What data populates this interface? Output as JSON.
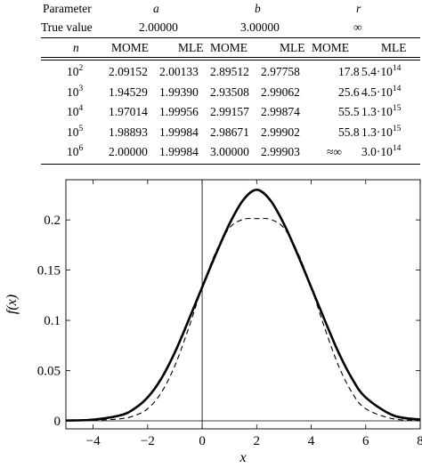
{
  "table": {
    "parameter_label": "Parameter",
    "true_value_label": "True value",
    "params": [
      "a",
      "b",
      "r"
    ],
    "true_values": [
      "2.00000",
      "3.00000",
      "∞"
    ],
    "n_label": "n",
    "col_headers": [
      "MOME",
      "MLE",
      "MOME",
      "MLE",
      "MOME",
      "MLE"
    ],
    "rows": [
      {
        "n_base": "10",
        "n_exp": "2",
        "a_mome": "2.09152",
        "a_mle": "2.00133",
        "b_mome": "2.89512",
        "b_mle": "2.97758",
        "r_mome": "17.8",
        "r_mle_mant": "5.4·10",
        "r_mle_exp": "14"
      },
      {
        "n_base": "10",
        "n_exp": "3",
        "a_mome": "1.94529",
        "a_mle": "1.99390",
        "b_mome": "2.93508",
        "b_mle": "2.99062",
        "r_mome": "25.6",
        "r_mle_mant": "4.5·10",
        "r_mle_exp": "14"
      },
      {
        "n_base": "10",
        "n_exp": "4",
        "a_mome": "1.97014",
        "a_mle": "1.99956",
        "b_mome": "2.99157",
        "b_mle": "2.99874",
        "r_mome": "55.5",
        "r_mle_mant": "1.3·10",
        "r_mle_exp": "15"
      },
      {
        "n_base": "10",
        "n_exp": "5",
        "a_mome": "1.98893",
        "a_mle": "1.99984",
        "b_mome": "2.98671",
        "b_mle": "2.99902",
        "r_mome": "55.8",
        "r_mle_mant": "1.3·10",
        "r_mle_exp": "15"
      },
      {
        "n_base": "10",
        "n_exp": "6",
        "a_mome": "2.00000",
        "a_mle": "1.99984",
        "b_mome": "3.00000",
        "b_mle": "2.99903",
        "r_mome": "≈∞",
        "r_mle_mant": "3.0·10",
        "r_mle_exp": "14"
      }
    ]
  },
  "chart_data": {
    "type": "line",
    "xlabel": "x",
    "ylabel": "f(x)",
    "xlim": [
      -5,
      8
    ],
    "ylim": [
      -0.008,
      0.24
    ],
    "xticks": [
      -4,
      -2,
      0,
      2,
      4,
      6,
      8
    ],
    "xtick_labels": [
      "−4",
      "−2",
      "0",
      "2",
      "4",
      "6",
      "8"
    ],
    "yticks": [
      0,
      0.05,
      0.1,
      0.15,
      0.2
    ],
    "ytick_labels": [
      "0",
      "0.05",
      "0.1",
      "0.15",
      "0.2"
    ],
    "series": [
      {
        "style": "solid",
        "color": "#000000",
        "x": [
          -5,
          -4,
          -3,
          -2.5,
          -2,
          -1.5,
          -1,
          -0.5,
          0,
          0.5,
          1,
          1.5,
          2,
          2.5,
          3,
          3.5,
          4,
          4.5,
          5,
          5.5,
          6,
          7,
          8
        ],
        "y": [
          0.0003,
          0.0012,
          0.0055,
          0.0118,
          0.0233,
          0.042,
          0.0682,
          0.1,
          0.133,
          0.1657,
          0.196,
          0.2196,
          0.23,
          0.2196,
          0.196,
          0.1657,
          0.133,
          0.1,
          0.0682,
          0.042,
          0.0233,
          0.0055,
          0.0012
        ]
      },
      {
        "style": "dashed",
        "color": "#000000",
        "x": [
          -5,
          -4,
          -3,
          -2.5,
          -2,
          -1.5,
          -1,
          -0.5,
          0,
          0.5,
          1,
          1.5,
          2,
          2.5,
          3,
          3.5,
          4,
          4.5,
          5,
          5.5,
          6,
          7,
          8
        ],
        "y": [
          0.0,
          0.0005,
          0.002,
          0.005,
          0.012,
          0.028,
          0.055,
          0.092,
          0.133,
          0.168,
          0.192,
          0.2005,
          0.2013,
          0.2005,
          0.192,
          0.168,
          0.133,
          0.092,
          0.055,
          0.028,
          0.012,
          0.002,
          0.0005
        ]
      }
    ]
  }
}
